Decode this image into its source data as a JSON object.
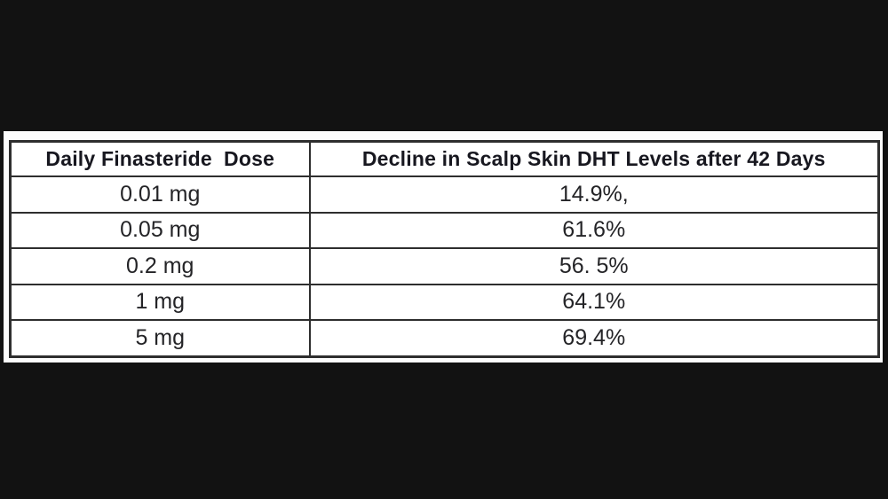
{
  "background": {
    "letterbox_color": "#121212",
    "band_color": "#fcfcfc"
  },
  "table": {
    "columns": [
      "Daily Finasteride  Dose",
      "Decline in Scalp Skin DHT Levels after 42 Days"
    ],
    "rows": [
      [
        "0.01 mg",
        "14.9%,"
      ],
      [
        "0.05 mg",
        "61.6%"
      ],
      [
        "0.2 mg",
        "56. 5%"
      ],
      [
        "1 mg",
        "64.1%"
      ],
      [
        "5 mg",
        "69.4%"
      ]
    ],
    "border_color": "#2e2e2e",
    "header_text_color": "#17171f",
    "cell_text_color": "#242427"
  },
  "chart_data": {
    "type": "table",
    "title": "Decline in Scalp Skin DHT Levels after 42 Days by Daily Finasteride Dose",
    "categories": [
      "0.01 mg",
      "0.05 mg",
      "0.2 mg",
      "1 mg",
      "5 mg"
    ],
    "values": [
      14.9,
      61.6,
      56.5,
      64.1,
      69.4
    ],
    "columns": [
      "Daily Finasteride Dose",
      "Decline in Scalp Skin DHT Levels after 42 Days"
    ],
    "value_unit": "%"
  }
}
